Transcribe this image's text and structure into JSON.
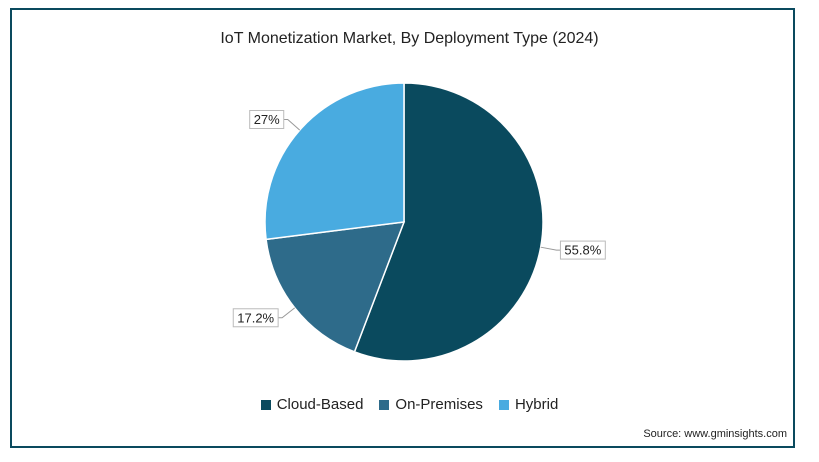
{
  "chart_data": {
    "type": "pie",
    "title": "IoT Monetization Market, By Deployment Type (2024)",
    "slices": [
      {
        "name": "Cloud-Based",
        "value": 55.8,
        "label": "55.8%",
        "color": "#0a4a5e"
      },
      {
        "name": "On-Premises",
        "value": 17.2,
        "label": "17.2%",
        "color": "#2e6b8a"
      },
      {
        "name": "Hybrid",
        "value": 27,
        "label": "27%",
        "color": "#49abe0"
      }
    ],
    "legend_placement": "bottom",
    "start_angle_deg": 0,
    "direction": "clockwise"
  },
  "source": "Source: www.gminsights.com"
}
